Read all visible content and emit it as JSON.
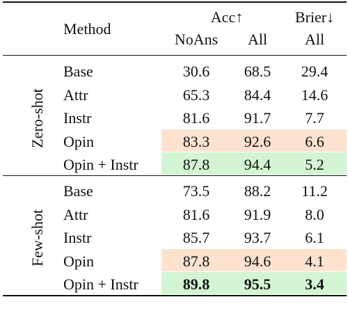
{
  "header": {
    "method": "Method",
    "acc": "Acc↑",
    "brier": "Brier↓",
    "noans": "NoAns",
    "all_acc": "All",
    "all_brier": "All"
  },
  "colors": {
    "orange_highlight": "#fde3cf",
    "green_highlight": "#d3f5d3"
  },
  "groups": [
    {
      "label": "Zero-shot",
      "rows": [
        {
          "method": "Base",
          "noans": "30.6",
          "all": "68.5",
          "brier": "29.4",
          "highlight": "none",
          "bold": false
        },
        {
          "method": "Attr",
          "noans": "65.3",
          "all": "84.4",
          "brier": "14.6",
          "highlight": "none",
          "bold": false
        },
        {
          "method": "Instr",
          "noans": "81.6",
          "all": "91.7",
          "brier": "7.7",
          "highlight": "none",
          "bold": false
        },
        {
          "method": "Opin",
          "noans": "83.3",
          "all": "92.6",
          "brier": "6.6",
          "highlight": "orange",
          "bold": false
        },
        {
          "method": "Opin + Instr",
          "noans": "87.8",
          "all": "94.4",
          "brier": "5.2",
          "highlight": "green",
          "bold": false
        }
      ]
    },
    {
      "label": "Few-shot",
      "rows": [
        {
          "method": "Base",
          "noans": "73.5",
          "all": "88.2",
          "brier": "11.2",
          "highlight": "none",
          "bold": false
        },
        {
          "method": "Attr",
          "noans": "81.6",
          "all": "91.9",
          "brier": "8.0",
          "highlight": "none",
          "bold": false
        },
        {
          "method": "Instr",
          "noans": "85.7",
          "all": "93.7",
          "brier": "6.1",
          "highlight": "none",
          "bold": false
        },
        {
          "method": "Opin",
          "noans": "87.8",
          "all": "94.6",
          "brier": "4.1",
          "highlight": "orange",
          "bold": false
        },
        {
          "method": "Opin + Instr",
          "noans": "89.8",
          "all": "95.5",
          "brier": "3.4",
          "highlight": "green",
          "bold": true
        }
      ]
    }
  ]
}
